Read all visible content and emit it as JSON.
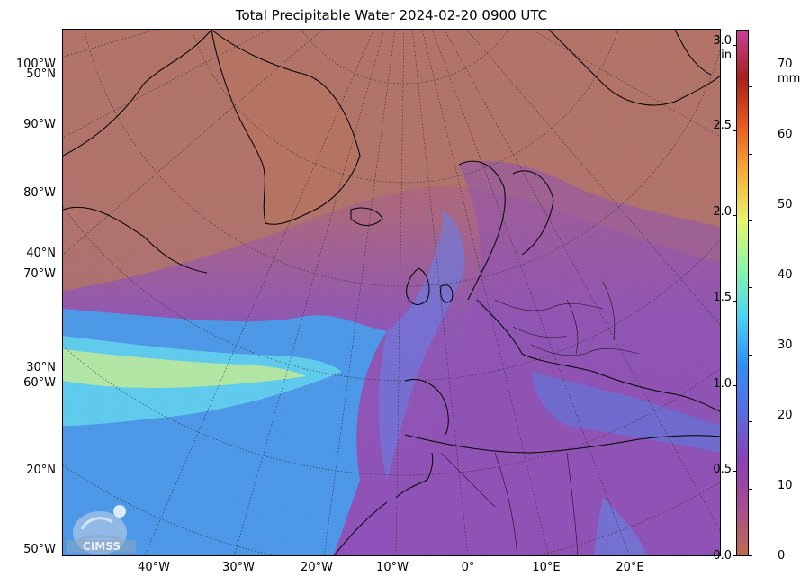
{
  "title": "Total Precipitable Water  2024-02-20 0900 UTC",
  "map": {
    "lat_labels_left": [
      "50°N",
      "40°N",
      "30°N",
      "20°N"
    ],
    "lon_labels_left": [
      "100°W",
      "90°W",
      "80°W",
      "70°W",
      "60°W",
      "50°W"
    ],
    "lon_labels_bottom": [
      "40°W",
      "30°W",
      "20°W",
      "10°W",
      "0°",
      "10°E",
      "20°E"
    ]
  },
  "colorbar": {
    "unit_in": "in",
    "unit_mm": "mm",
    "in_ticks": [
      "3.0",
      "2.5",
      "2.0",
      "1.5",
      "1.0",
      "0.5",
      "0.0"
    ],
    "mm_ticks": [
      "70",
      "60",
      "50",
      "40",
      "30",
      "20",
      "10",
      "0"
    ],
    "colors": [
      "#c06a4d",
      "#a84d92",
      "#8a3fb4",
      "#5a6ee0",
      "#2f8ff2",
      "#4ad4f5",
      "#8af5a8",
      "#e8f56a",
      "#f5b03a",
      "#e85a1e",
      "#a8201c",
      "#c8409a"
    ]
  },
  "logo": {
    "text": "CIMSS"
  }
}
